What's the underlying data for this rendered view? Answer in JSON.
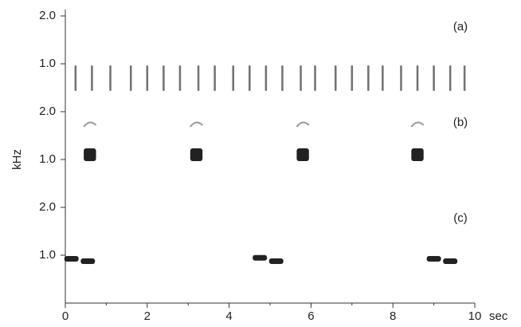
{
  "chart_data": {
    "type": "spectrogram",
    "x_label": "sec",
    "y_label": "kHz",
    "xlim": [
      0,
      10
    ],
    "xticks": [
      0,
      2,
      4,
      6,
      8,
      10
    ],
    "xminor": [
      1,
      3,
      5,
      7,
      9
    ],
    "panels": [
      {
        "label": "(a)",
        "ylim": [
          0,
          2
        ],
        "yticks": [
          {
            "value": 2,
            "label": "2.0"
          },
          {
            "value": 1,
            "label": "1.0"
          }
        ],
        "duration": 0.05,
        "times": [
          0.25,
          0.65,
          1.1,
          1.6,
          2.0,
          2.4,
          2.8,
          3.25,
          3.65,
          4.1,
          4.5,
          4.9,
          5.3,
          5.75,
          6.1,
          6.6,
          7.0,
          7.4,
          7.75,
          8.2,
          8.6,
          9.0,
          9.4,
          9.75
        ],
        "freqs": [
          0.7,
          0.7,
          0.7,
          0.7,
          0.7,
          0.7,
          0.7,
          0.7,
          0.7,
          0.7,
          0.7,
          0.7,
          0.7,
          0.7,
          0.7,
          0.7,
          0.7,
          0.7,
          0.7,
          0.7,
          0.7,
          0.7,
          0.7,
          0.7
        ]
      },
      {
        "label": "(b)",
        "ylim": [
          0,
          2
        ],
        "yticks": [
          {
            "value": 2,
            "label": "2.0"
          },
          {
            "value": 1,
            "label": "1.0"
          }
        ],
        "duration": 0.3,
        "overtone": 1.75,
        "times": [
          0.6,
          3.2,
          5.8,
          8.6
        ],
        "freqs": [
          1.15,
          1.15,
          1.15,
          1.15
        ]
      },
      {
        "label": "(c)",
        "ylim": [
          0,
          2
        ],
        "yticks": [
          {
            "value": 2,
            "label": "2.0"
          },
          {
            "value": 1,
            "label": "1.0"
          }
        ],
        "duration": 0.35,
        "times": [
          0.15,
          0.55,
          4.75,
          5.15,
          9.0,
          9.4
        ],
        "freqs": [
          0.9,
          0.85,
          0.92,
          0.85,
          0.9,
          0.85
        ]
      }
    ]
  }
}
